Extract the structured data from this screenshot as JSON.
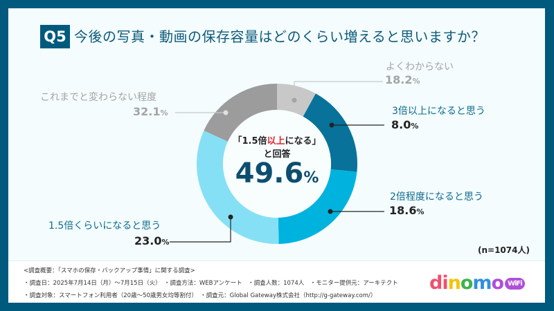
{
  "question": {
    "number": "Q5",
    "text": "今後の写真・動画の保存容量はどのくらい増えると思いますか？"
  },
  "chart_data": {
    "type": "pie",
    "donut": true,
    "categories": [
      "よくわからない",
      "3倍以上になると思う",
      "2倍程度になると思う",
      "1.5倍くらいになると思う",
      "これまでと変わらない程度"
    ],
    "values": [
      18.2,
      8.0,
      18.6,
      23.0,
      32.1
    ],
    "value_labels": [
      "18.2",
      "8.0",
      "18.6",
      "23.0",
      "32.1"
    ],
    "unit": "%",
    "colors": [
      "#c8c8c8",
      "#08729a",
      "#00b3de",
      "#86e0f5",
      "#9c9c9c"
    ],
    "center": {
      "line1_pre": "「1.5倍",
      "line1_red": "以上",
      "line1_post": "になる」",
      "line2": "と回答",
      "value": "49.6",
      "unit": "%"
    },
    "accent_color": "#e0262b"
  },
  "sample": "(n=1074人)",
  "footer": {
    "line1": "<調査概要：「スマホの保存・バックアップ事情」に関する調査>",
    "line2": "・調査日：2025年7月14日（月）〜7月15日（火）　・調査方法：WEBアンケート　・調査人数：1074人　・モニター提供元：アーキテクト",
    "line3": "・調査対象：スマートフォン利用者（20歳〜50歳男女均等割付）　・調査元：Global Gateway株式会社（http://g-gateway.com/）"
  },
  "logo": {
    "text": "dinomo",
    "badge": "WiFi"
  }
}
